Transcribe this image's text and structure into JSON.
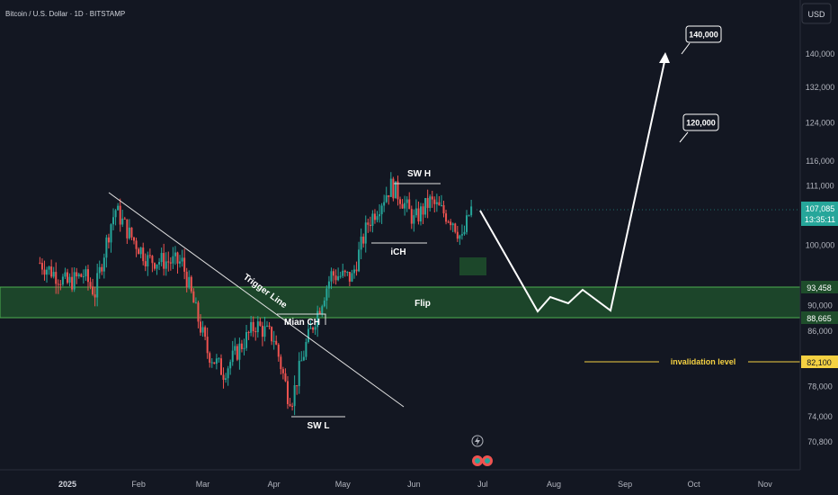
{
  "header": {
    "symbol_title": "Bitcoin / U.S. Dollar · 1D · BITSTAMP"
  },
  "currency_button": "USD",
  "price_axis": {
    "ticks": [
      "140,000",
      "132,000",
      "124,000",
      "116,000",
      "111,000",
      "100,000",
      "90,000",
      "86,000",
      "78,000",
      "74,000",
      "70,800"
    ],
    "current_price": "107,085",
    "countdown": "13:35:11",
    "flip_top_label": "93,458",
    "flip_bottom_label": "88,665",
    "invalidation_label": "82,100"
  },
  "time_axis": {
    "ticks": [
      "2025",
      "Feb",
      "Mar",
      "Apr",
      "May",
      "Jun",
      "Jul",
      "Aug",
      "Sep",
      "Oct",
      "Nov"
    ]
  },
  "annotations": {
    "trigger_line": "Trigger Line",
    "main_ch": "Mian CH",
    "sw_l": "SW L",
    "sw_h": "SW H",
    "ich": "iCH",
    "flip": "Flip",
    "invalidation": "invalidation level",
    "target_1": "120,000",
    "target_2": "140,000"
  },
  "colors": {
    "background": "#131722",
    "up_candle": "#26a69a",
    "down_candle": "#ef5350",
    "flip_zone": "#1e4d2b",
    "flip_border": "#4caf50",
    "invalidation": "#f5d142",
    "current_price_tag": "#26a69a"
  },
  "chart_data": {
    "type": "candlestick",
    "title": "Bitcoin / U.S. Dollar · 1D · BITSTAMP",
    "x_range": [
      "2024-12-18",
      "2025-11-18"
    ],
    "y_range": [
      69000,
      146000
    ],
    "y_scale": "log",
    "grid": false,
    "last_close": 107085,
    "price_path_closes": [
      {
        "date": "2024-12-20",
        "close": 97000
      },
      {
        "date": "2025-01-01",
        "close": 93500
      },
      {
        "date": "2025-01-08",
        "close": 95000
      },
      {
        "date": "2025-01-13",
        "close": 92000
      },
      {
        "date": "2025-01-20",
        "close": 104000
      },
      {
        "date": "2025-01-22",
        "close": 106500
      },
      {
        "date": "2025-01-28",
        "close": 102000
      },
      {
        "date": "2025-02-05",
        "close": 97500
      },
      {
        "date": "2025-02-20",
        "close": 97000
      },
      {
        "date": "2025-02-26",
        "close": 89000
      },
      {
        "date": "2025-03-03",
        "close": 83000
      },
      {
        "date": "2025-03-10",
        "close": 80000
      },
      {
        "date": "2025-03-24",
        "close": 87000
      },
      {
        "date": "2025-04-01",
        "close": 85000
      },
      {
        "date": "2025-04-07",
        "close": 77000
      },
      {
        "date": "2025-04-09",
        "close": 76500
      },
      {
        "date": "2025-04-15",
        "close": 84000
      },
      {
        "date": "2025-04-22",
        "close": 91000
      },
      {
        "date": "2025-04-26",
        "close": 95000
      },
      {
        "date": "2025-05-05",
        "close": 94500
      },
      {
        "date": "2025-05-12",
        "close": 104000
      },
      {
        "date": "2025-05-22",
        "close": 111000
      },
      {
        "date": "2025-05-26",
        "close": 109000
      },
      {
        "date": "2025-06-01",
        "close": 104500
      },
      {
        "date": "2025-06-08",
        "close": 108000
      },
      {
        "date": "2025-06-18",
        "close": 104500
      },
      {
        "date": "2025-06-22",
        "close": 100800
      },
      {
        "date": "2025-06-26",
        "close": 107085
      }
    ],
    "horizontal_levels": [
      {
        "label": "Flip",
        "from": 88665,
        "to": 93458
      },
      {
        "label": "invalidation level",
        "value": 82100
      }
    ],
    "projected_path": [
      {
        "date": "2025-06-27",
        "price": 108000
      },
      {
        "date": "2025-07-22",
        "price": 89500
      },
      {
        "date": "2025-07-28",
        "price": 91700
      },
      {
        "date": "2025-08-05",
        "price": 90300
      },
      {
        "date": "2025-08-12",
        "price": 92700
      },
      {
        "date": "2025-08-23",
        "price": 89500
      },
      {
        "date": "2025-09-18",
        "price": 139000
      }
    ],
    "targets": [
      120000,
      140000
    ]
  }
}
